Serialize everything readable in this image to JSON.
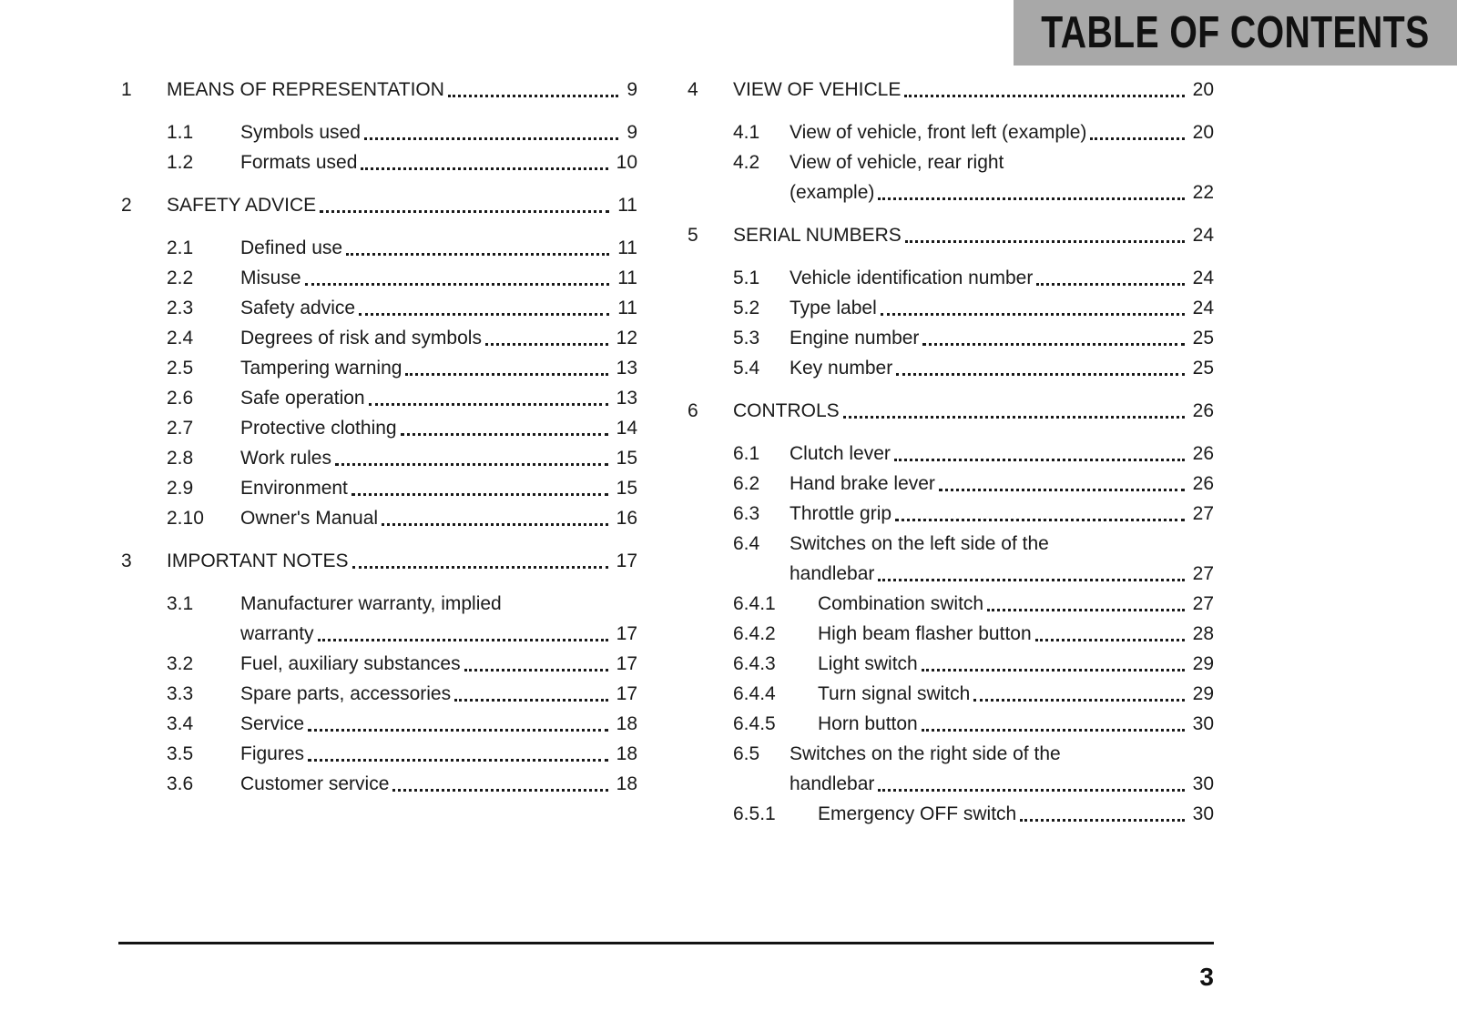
{
  "header": {
    "title": "TABLE OF CONTENTS"
  },
  "footer": {
    "page_number": "3"
  },
  "colors": {
    "banner_bg": "#a8a8a8",
    "text": "#1a1a1a"
  },
  "toc_columns": [
    {
      "sections": [
        {
          "number": "1",
          "title": "MEANS OF REPRESENTATION",
          "page": "9",
          "entries": [
            {
              "number": "1.1",
              "level": 2,
              "lines": [
                "Symbols used"
              ],
              "page": "9"
            },
            {
              "number": "1.2",
              "level": 2,
              "lines": [
                "Formats used"
              ],
              "page": "10"
            }
          ]
        },
        {
          "number": "2",
          "title": "SAFETY ADVICE",
          "page": "11",
          "entries": [
            {
              "number": "2.1",
              "level": 2,
              "lines": [
                "Defined use"
              ],
              "page": "11"
            },
            {
              "number": "2.2",
              "level": 2,
              "lines": [
                "Misuse"
              ],
              "page": "11"
            },
            {
              "number": "2.3",
              "level": 2,
              "lines": [
                "Safety advice"
              ],
              "page": "11"
            },
            {
              "number": "2.4",
              "level": 2,
              "lines": [
                "Degrees of risk and symbols"
              ],
              "page": "12"
            },
            {
              "number": "2.5",
              "level": 2,
              "lines": [
                "Tampering warning"
              ],
              "page": "13"
            },
            {
              "number": "2.6",
              "level": 2,
              "lines": [
                "Safe operation"
              ],
              "page": "13"
            },
            {
              "number": "2.7",
              "level": 2,
              "lines": [
                "Protective clothing"
              ],
              "page": "14"
            },
            {
              "number": "2.8",
              "level": 2,
              "lines": [
                "Work rules"
              ],
              "page": "15"
            },
            {
              "number": "2.9",
              "level": 2,
              "lines": [
                "Environment"
              ],
              "page": "15"
            },
            {
              "number": "2.10",
              "level": 2,
              "lines": [
                "Owner's Manual"
              ],
              "page": "16"
            }
          ]
        },
        {
          "number": "3",
          "title": "IMPORTANT NOTES",
          "page": "17",
          "entries": [
            {
              "number": "3.1",
              "level": 2,
              "lines": [
                "Manufacturer warranty, implied",
                "warranty"
              ],
              "page": "17"
            },
            {
              "number": "3.2",
              "level": 2,
              "lines": [
                "Fuel, auxiliary substances"
              ],
              "page": "17"
            },
            {
              "number": "3.3",
              "level": 2,
              "lines": [
                "Spare parts, accessories"
              ],
              "page": "17"
            },
            {
              "number": "3.4",
              "level": 2,
              "lines": [
                "Service"
              ],
              "page": "18"
            },
            {
              "number": "3.5",
              "level": 2,
              "lines": [
                "Figures"
              ],
              "page": "18"
            },
            {
              "number": "3.6",
              "level": 2,
              "lines": [
                "Customer service"
              ],
              "page": "18"
            }
          ]
        }
      ]
    },
    {
      "sections": [
        {
          "number": "4",
          "title": "VIEW OF VEHICLE",
          "page": "20",
          "entries": [
            {
              "number": "4.1",
              "level": 2,
              "lines": [
                "View of vehicle, front left (example)"
              ],
              "page": "20"
            },
            {
              "number": "4.2",
              "level": 2,
              "lines": [
                "View of vehicle, rear right",
                "(example)"
              ],
              "page": "22"
            }
          ]
        },
        {
          "number": "5",
          "title": "SERIAL NUMBERS",
          "page": "24",
          "entries": [
            {
              "number": "5.1",
              "level": 2,
              "lines": [
                "Vehicle identification number"
              ],
              "page": "24"
            },
            {
              "number": "5.2",
              "level": 2,
              "lines": [
                "Type label"
              ],
              "page": "24"
            },
            {
              "number": "5.3",
              "level": 2,
              "lines": [
                "Engine number"
              ],
              "page": "25"
            },
            {
              "number": "5.4",
              "level": 2,
              "lines": [
                "Key number"
              ],
              "page": "25"
            }
          ]
        },
        {
          "number": "6",
          "title": "CONTROLS",
          "page": "26",
          "entries": [
            {
              "number": "6.1",
              "level": 2,
              "lines": [
                "Clutch lever"
              ],
              "page": "26"
            },
            {
              "number": "6.2",
              "level": 2,
              "lines": [
                "Hand brake lever"
              ],
              "page": "26"
            },
            {
              "number": "6.3",
              "level": 2,
              "lines": [
                "Throttle grip"
              ],
              "page": "27"
            },
            {
              "number": "6.4",
              "level": 2,
              "lines": [
                "Switches on the left side of the",
                "handlebar"
              ],
              "page": "27"
            },
            {
              "number": "6.4.1",
              "level": 3,
              "lines": [
                "Combination switch"
              ],
              "page": "27"
            },
            {
              "number": "6.4.2",
              "level": 3,
              "lines": [
                "High beam flasher button"
              ],
              "page": "28"
            },
            {
              "number": "6.4.3",
              "level": 3,
              "lines": [
                "Light switch"
              ],
              "page": "29"
            },
            {
              "number": "6.4.4",
              "level": 3,
              "lines": [
                "Turn signal switch"
              ],
              "page": "29"
            },
            {
              "number": "6.4.5",
              "level": 3,
              "lines": [
                "Horn button"
              ],
              "page": "30"
            },
            {
              "number": "6.5",
              "level": 2,
              "lines": [
                "Switches on the right side of the",
                "handlebar"
              ],
              "page": "30"
            },
            {
              "number": "6.5.1",
              "level": 3,
              "lines": [
                "Emergency OFF switch"
              ],
              "page": "30"
            }
          ]
        }
      ]
    }
  ]
}
